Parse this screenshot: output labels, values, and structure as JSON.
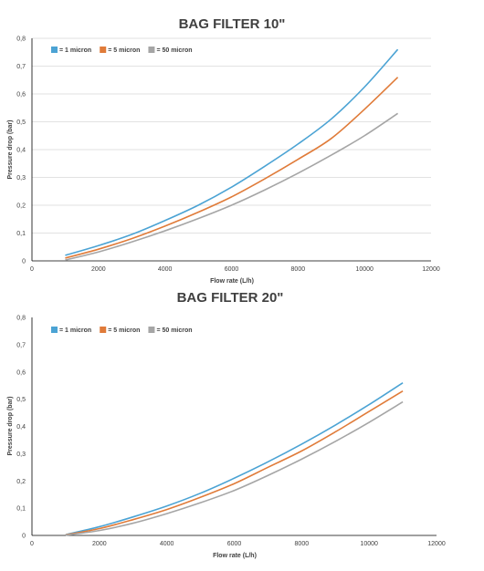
{
  "chart_data": [
    {
      "type": "line",
      "title": "BAG FILTER 10\"",
      "xlabel": "Flow rate (L/h)",
      "ylabel": "Pressure drop (bar)",
      "xlim": [
        0,
        12000
      ],
      "ylim": [
        0,
        0.8
      ],
      "xticks": [
        "0",
        "2000",
        "4000",
        "6000",
        "8000",
        "10000",
        "12000"
      ],
      "yticks": [
        "0",
        "0,1",
        "0,2",
        "0,3",
        "0,4",
        "0,5",
        "0,6",
        "0,7",
        "0,8"
      ],
      "grid": "horizontal",
      "legend_position": "top-left",
      "series": [
        {
          "name": "= 1 micron",
          "color": "#4ba3d4",
          "points": [
            [
              1000,
              0.02
            ],
            [
              2000,
              0.055
            ],
            [
              3000,
              0.095
            ],
            [
              4000,
              0.145
            ],
            [
              5000,
              0.2
            ],
            [
              6000,
              0.265
            ],
            [
              7000,
              0.34
            ],
            [
              8000,
              0.42
            ],
            [
              9000,
              0.51
            ],
            [
              10000,
              0.625
            ],
            [
              11000,
              0.76
            ]
          ]
        },
        {
          "name": "= 5 micron",
          "color": "#e07b39",
          "points": [
            [
              1000,
              0.01
            ],
            [
              2000,
              0.042
            ],
            [
              3000,
              0.08
            ],
            [
              4000,
              0.125
            ],
            [
              5000,
              0.175
            ],
            [
              6000,
              0.23
            ],
            [
              7000,
              0.295
            ],
            [
              8000,
              0.365
            ],
            [
              9000,
              0.44
            ],
            [
              10000,
              0.545
            ],
            [
              11000,
              0.66
            ]
          ]
        },
        {
          "name": "= 50 micron",
          "color": "#a5a5a5",
          "points": [
            [
              1000,
              0.003
            ],
            [
              2000,
              0.032
            ],
            [
              3000,
              0.068
            ],
            [
              4000,
              0.108
            ],
            [
              5000,
              0.152
            ],
            [
              6000,
              0.2
            ],
            [
              7000,
              0.255
            ],
            [
              8000,
              0.315
            ],
            [
              9000,
              0.38
            ],
            [
              10000,
              0.45
            ],
            [
              11000,
              0.53
            ]
          ]
        }
      ]
    },
    {
      "type": "line",
      "title": "BAG FILTER 20\"",
      "xlabel": "Flow rate (L/h)",
      "ylabel": "Pressure drop (bar)",
      "xlim": [
        0,
        12000
      ],
      "ylim": [
        0,
        0.8
      ],
      "xticks": [
        "0",
        "2000",
        "4000",
        "6000",
        "8000",
        "10000",
        "12000"
      ],
      "yticks": [
        "0",
        "0,1",
        "0,2",
        "0,3",
        "0,4",
        "0,5",
        "0,6",
        "0,7",
        "0,8"
      ],
      "grid": "none",
      "legend_position": "top-left",
      "series": [
        {
          "name": "= 1 micron",
          "color": "#4ba3d4",
          "points": [
            [
              1000,
              0.003
            ],
            [
              2000,
              0.032
            ],
            [
              3000,
              0.068
            ],
            [
              4000,
              0.108
            ],
            [
              5000,
              0.155
            ],
            [
              6000,
              0.21
            ],
            [
              7000,
              0.27
            ],
            [
              8000,
              0.335
            ],
            [
              9000,
              0.405
            ],
            [
              10000,
              0.48
            ],
            [
              11000,
              0.56
            ]
          ]
        },
        {
          "name": "= 5 micron",
          "color": "#e07b39",
          "points": [
            [
              1000,
              0.002
            ],
            [
              2000,
              0.025
            ],
            [
              3000,
              0.058
            ],
            [
              4000,
              0.095
            ],
            [
              5000,
              0.14
            ],
            [
              6000,
              0.19
            ],
            [
              7000,
              0.25
            ],
            [
              8000,
              0.31
            ],
            [
              9000,
              0.38
            ],
            [
              10000,
              0.455
            ],
            [
              11000,
              0.53
            ]
          ]
        },
        {
          "name": "= 50 micron",
          "color": "#a5a5a5",
          "points": [
            [
              1000,
              0.001
            ],
            [
              2000,
              0.018
            ],
            [
              3000,
              0.045
            ],
            [
              4000,
              0.08
            ],
            [
              5000,
              0.12
            ],
            [
              6000,
              0.165
            ],
            [
              7000,
              0.22
            ],
            [
              8000,
              0.28
            ],
            [
              9000,
              0.345
            ],
            [
              10000,
              0.415
            ],
            [
              11000,
              0.49
            ]
          ]
        }
      ]
    }
  ]
}
